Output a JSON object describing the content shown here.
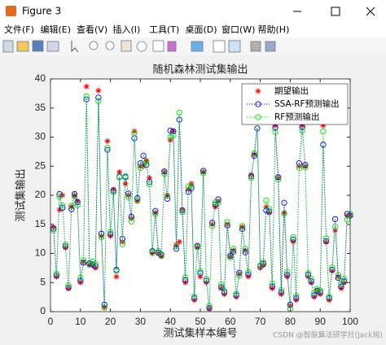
{
  "window": {
    "title": "Figure 3",
    "menu": [
      "文件(F)",
      "编辑(E)",
      "查看(V)",
      "插入(I)",
      "工具(T)",
      "桌面(D)",
      "窗口(W)",
      "帮助(H)"
    ]
  },
  "chart_data": {
    "type": "line",
    "title": "随机森林测试集输出",
    "x_label": "测试集样本编号",
    "y_label": "测试集输出",
    "watermark": "CSDN @智能算法研学社(Jack旭)",
    "x": [
      1,
      2,
      3,
      4,
      5,
      6,
      7,
      8,
      9,
      10,
      11,
      12,
      13,
      14,
      15,
      16,
      17,
      18,
      19,
      20,
      21,
      22,
      23,
      24,
      25,
      26,
      27,
      28,
      29,
      30,
      31,
      32,
      33,
      34,
      35,
      36,
      37,
      38,
      39,
      40,
      41,
      42,
      43,
      44,
      45,
      46,
      47,
      48,
      49,
      50,
      51,
      52,
      53,
      54,
      55,
      56,
      57,
      58,
      59,
      60,
      61,
      62,
      63,
      64,
      65,
      66,
      67,
      68,
      69,
      70,
      71,
      72,
      73,
      74,
      75,
      76,
      77,
      78,
      79,
      80,
      81,
      82,
      83,
      84,
      85,
      86,
      87,
      88,
      89,
      90,
      91,
      92,
      93,
      94,
      95,
      96,
      97,
      98,
      99,
      100
    ],
    "series": [
      {
        "name": "期望输出",
        "color": "#ff0000",
        "marker": "*",
        "line": "none",
        "values": [
          14.5,
          6,
          17.5,
          20,
          11,
          4,
          18,
          20,
          19,
          5,
          8.5,
          38.7,
          8,
          8,
          7.5,
          38,
          13,
          0.8,
          29.3,
          13,
          21,
          6,
          24,
          12,
          22,
          20,
          16,
          31,
          19,
          25,
          25,
          26,
          23,
          10,
          17,
          10,
          9.5,
          24,
          20,
          29.5,
          31,
          11.5,
          12,
          17.5,
          5,
          21,
          22,
          2,
          11,
          6,
          24,
          5,
          0.5,
          15,
          18,
          19,
          4,
          3,
          15,
          9.5,
          10.5,
          2.5,
          6.5,
          14.5,
          10.5,
          6,
          23.5,
          27,
          33,
          7.5,
          8,
          18,
          17,
          4,
          32,
          23,
          3,
          17,
          6,
          1,
          12,
          2,
          25,
          32,
          25,
          6,
          5,
          2.5,
          3.5,
          3,
          32,
          12,
          2,
          7,
          14,
          6,
          4,
          5,
          16.5,
          16.5
        ]
      },
      {
        "name": "SSA-RF预测输出",
        "color": "#0000ff",
        "marker": "o",
        "line": "dotted",
        "values": [
          14.3,
          6.2,
          20.2,
          17.8,
          11.2,
          4.1,
          17.6,
          20.2,
          18.8,
          5.3,
          8.4,
          36.5,
          8.3,
          8.1,
          7.8,
          36.8,
          13.4,
          1.2,
          27.8,
          13.3,
          20.8,
          7.2,
          23.2,
          12.5,
          23.1,
          20.3,
          16.3,
          29.8,
          19.5,
          25.5,
          26.8,
          25.2,
          22.3,
          10.4,
          17.3,
          10.1,
          9.8,
          24.1,
          19.4,
          31.1,
          31,
          10.8,
          33,
          17.4,
          5.4,
          20.6,
          21.2,
          2.3,
          11.3,
          6.6,
          24.2,
          5.3,
          0.6,
          15.3,
          18.4,
          19.3,
          4.2,
          3.3,
          14.8,
          9.6,
          10.3,
          2.8,
          6.7,
          14.2,
          10.2,
          6.4,
          23.3,
          26.8,
          31.5,
          7.8,
          8.2,
          17.4,
          17.2,
          4.3,
          31.6,
          23.1,
          3.3,
          18.7,
          6.3,
          1.2,
          12.4,
          2.3,
          25.5,
          31.7,
          25.2,
          6.3,
          5.2,
          2.8,
          3.6,
          3.3,
          28.7,
          12.1,
          2.3,
          7.2,
          15.9,
          5.8,
          4.3,
          5.2,
          16.8,
          16.5
        ]
      },
      {
        "name": "RF预测输出",
        "color": "#00e000",
        "marker": "o",
        "line": "dotted",
        "values": [
          14,
          6.5,
          19.8,
          18.2,
          11.5,
          4.5,
          18.2,
          19.8,
          18.3,
          5.8,
          8.8,
          37,
          8.1,
          8.6,
          8.2,
          36.2,
          12.8,
          0.7,
          28.2,
          13.7,
          20.5,
          7,
          23.1,
          11.6,
          23.3,
          19.7,
          15.5,
          30.7,
          19.1,
          24.7,
          25.3,
          25.8,
          21.9,
          10.2,
          16.8,
          10.4,
          9.6,
          23.7,
          19.9,
          30,
          30.3,
          11.2,
          34.2,
          17.1,
          5.9,
          21.5,
          21.6,
          2.6,
          11.1,
          6.9,
          23.8,
          5.6,
          1,
          14.7,
          18.8,
          18.7,
          4.7,
          3.6,
          15.4,
          9.3,
          10.8,
          3.1,
          6.2,
          14.7,
          10.8,
          6.8,
          23,
          27.2,
          32.8,
          7.9,
          8.5,
          19.1,
          17.6,
          4.8,
          30.9,
          22.7,
          3.7,
          16.8,
          6.8,
          0.5,
          12.8,
          2.7,
          24.7,
          31.1,
          24.8,
          6.6,
          5.6,
          3.2,
          3.9,
          3.6,
          31,
          12.6,
          2.6,
          7.6,
          14.6,
          6.3,
          4.8,
          5.6,
          15.8,
          16.8
        ]
      }
    ],
    "xlim": [
      0,
      100
    ],
    "xticks": [
      0,
      10,
      20,
      30,
      40,
      50,
      60,
      70,
      80,
      90,
      100
    ],
    "ylim": [
      0,
      40
    ],
    "yticks": [
      0,
      5,
      10,
      15,
      20,
      25,
      30,
      35,
      40
    ],
    "grid": false,
    "legend": "northeast"
  }
}
